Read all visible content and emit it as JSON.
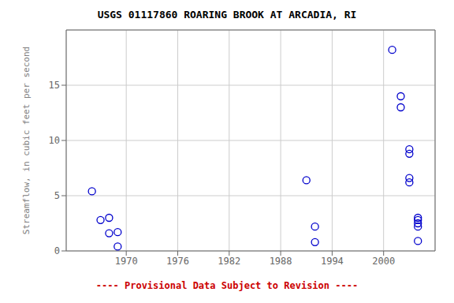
{
  "chart_data": {
    "type": "scatter",
    "title": "USGS 01117860 ROARING BROOK AT ARCADIA, RI",
    "ylabel": "Streamflow, in cubic feet per second",
    "annotations": [
      {
        "text": "---- Provisional Data Subject to Revision ----",
        "color": "#cc0000"
      }
    ],
    "x": [
      1966,
      1967,
      1968,
      1968,
      1969,
      1969,
      1991,
      1992,
      1992,
      2001,
      2002,
      2002,
      2003,
      2003,
      2003,
      2003,
      2004,
      2004,
      2004,
      2004,
      2004
    ],
    "values": [
      5.4,
      2.8,
      3.0,
      1.6,
      1.7,
      0.4,
      6.4,
      2.2,
      0.8,
      18.2,
      14.0,
      13.0,
      8.8,
      9.2,
      6.6,
      6.2,
      2.2,
      2.5,
      2.8,
      3.0,
      0.9
    ],
    "xlim": [
      1963,
      2006
    ],
    "ylim": [
      0,
      20
    ],
    "xticks": [
      1970,
      1976,
      1982,
      1988,
      1994,
      2000
    ],
    "yticks": [
      0,
      5,
      10,
      15
    ],
    "color": "#0000cc",
    "marker": "circle",
    "grid": true
  }
}
